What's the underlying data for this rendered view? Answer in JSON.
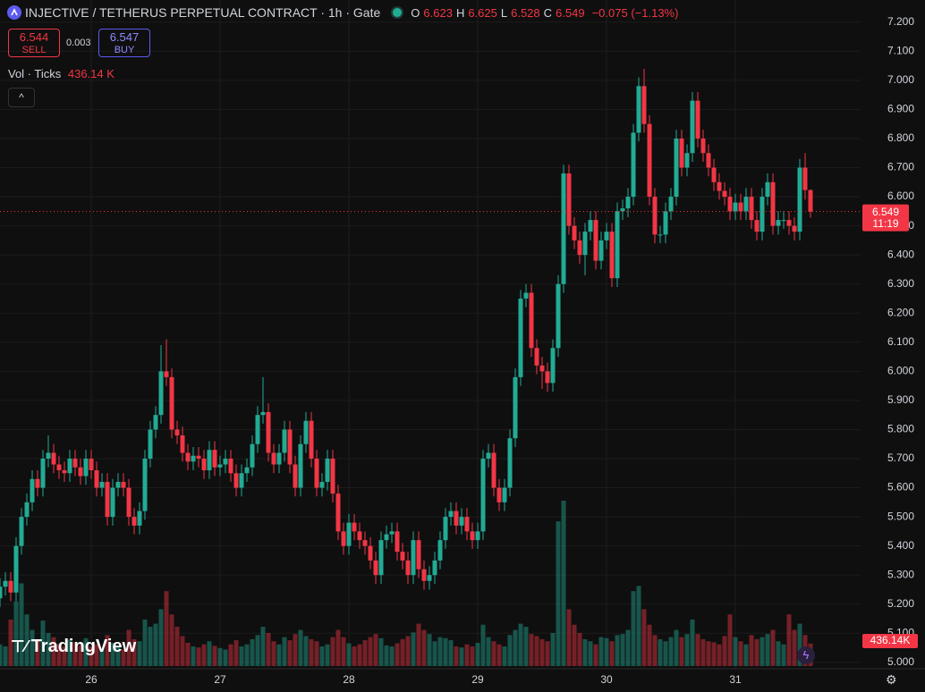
{
  "chart_data": {
    "type": "candlestick",
    "title": "INJECTIVE / TETHERUS PERPETUAL CONTRACT · 1h · Gate",
    "ohlc_labels": [
      "O",
      "H",
      "L",
      "C"
    ],
    "change": "−0.075 (−1.13%)",
    "sell": {
      "price": 6.544,
      "label": "SELL"
    },
    "spread": 0.003,
    "buy": {
      "price": 6.547,
      "label": "BUY"
    },
    "volume_title": "Vol · Ticks",
    "volume_readout": "436.14 K",
    "volume_tag": "436.14K",
    "countdown": "11:19",
    "logo": "TradingView",
    "up_color": "#22ab94",
    "down_color": "#f23645",
    "grid": true,
    "ylim": [
      4.978,
      7.276
    ],
    "yticks": [
      {
        "value": 5.0,
        "label": "5.000"
      },
      {
        "value": 5.1,
        "label": "5.100"
      },
      {
        "value": 5.2,
        "label": "5.200"
      },
      {
        "value": 5.3,
        "label": "5.300"
      },
      {
        "value": 5.4,
        "label": "5.400"
      },
      {
        "value": 5.5,
        "label": "5.500"
      },
      {
        "value": 5.6,
        "label": "5.600"
      },
      {
        "value": 5.7,
        "label": "5.700"
      },
      {
        "value": 5.8,
        "label": "5.800"
      },
      {
        "value": 5.9,
        "label": "5.900"
      },
      {
        "value": 6.0,
        "label": "6.000"
      },
      {
        "value": 6.1,
        "label": "6.100"
      },
      {
        "value": 6.2,
        "label": "6.200"
      },
      {
        "value": 6.3,
        "label": "6.300"
      },
      {
        "value": 6.4,
        "label": "6.400"
      },
      {
        "value": 6.5,
        "label": "6.500"
      },
      {
        "value": 6.6,
        "label": "6.600"
      },
      {
        "value": 6.7,
        "label": "6.700"
      },
      {
        "value": 6.8,
        "label": "6.800"
      },
      {
        "value": 6.9,
        "label": "6.900"
      },
      {
        "value": 7.0,
        "label": "7.000"
      },
      {
        "value": 7.1,
        "label": "7.100"
      },
      {
        "value": 7.2,
        "label": "7.200"
      }
    ],
    "categories": [
      null,
      null,
      null,
      null,
      null,
      null,
      null,
      null,
      null,
      null,
      null,
      null,
      null,
      null,
      null,
      null,
      null,
      "26",
      null,
      null,
      null,
      null,
      null,
      null,
      null,
      null,
      null,
      null,
      null,
      null,
      null,
      null,
      null,
      null,
      null,
      null,
      null,
      null,
      null,
      null,
      null,
      "27",
      null,
      null,
      null,
      null,
      null,
      null,
      null,
      null,
      null,
      null,
      null,
      null,
      null,
      null,
      null,
      null,
      null,
      null,
      null,
      null,
      null,
      null,
      null,
      "28",
      null,
      null,
      null,
      null,
      null,
      null,
      null,
      null,
      null,
      null,
      null,
      null,
      null,
      null,
      null,
      null,
      null,
      null,
      null,
      null,
      null,
      null,
      null,
      "29",
      null,
      null,
      null,
      null,
      null,
      null,
      null,
      null,
      null,
      null,
      null,
      null,
      null,
      null,
      null,
      null,
      null,
      null,
      null,
      null,
      null,
      null,
      null,
      "30",
      null,
      null,
      null,
      null,
      null,
      null,
      null,
      null,
      null,
      null,
      null,
      null,
      null,
      null,
      null,
      null,
      null,
      null,
      null,
      null,
      null,
      null,
      null,
      "31",
      null,
      null,
      null,
      null,
      null,
      null,
      null,
      null,
      null,
      null,
      null,
      null,
      null,
      null
    ],
    "open": [
      5.22,
      5.26,
      5.28,
      5.24,
      5.4,
      5.5,
      5.55,
      5.63,
      5.6,
      5.7,
      5.72,
      5.68,
      5.66,
      5.65,
      5.7,
      5.67,
      5.64,
      5.7,
      5.66,
      5.6,
      5.62,
      5.5,
      5.6,
      5.62,
      5.6,
      5.5,
      5.47,
      5.52,
      5.7,
      5.8,
      5.85,
      6.0,
      5.98,
      5.8,
      5.78,
      5.72,
      5.69,
      5.71,
      5.7,
      5.66,
      5.73,
      5.67,
      5.68,
      5.7,
      5.65,
      5.6,
      5.65,
      5.67,
      5.75,
      5.85,
      5.86,
      5.72,
      5.68,
      5.72,
      5.8,
      5.68,
      5.6,
      5.75,
      5.83,
      5.7,
      5.6,
      5.62,
      5.7,
      5.58,
      5.45,
      5.4,
      5.48,
      5.45,
      5.42,
      5.4,
      5.35,
      5.3,
      5.42,
      5.44,
      5.45,
      5.38,
      5.35,
      5.3,
      5.42,
      5.32,
      5.28,
      5.3,
      5.35,
      5.42,
      5.5,
      5.52,
      5.47,
      5.5,
      5.45,
      5.42,
      5.45,
      5.7,
      5.72,
      5.6,
      5.55,
      5.6,
      5.77,
      5.98,
      6.25,
      6.27,
      6.08,
      6.02,
      6.0,
      5.96,
      6.08,
      6.3,
      6.68,
      6.5,
      6.45,
      6.4,
      6.48,
      6.52,
      6.38,
      6.45,
      6.48,
      6.32,
      6.55,
      6.56,
      6.6,
      6.82,
      6.98,
      6.85,
      6.6,
      6.47,
      6.47,
      6.55,
      6.6,
      6.8,
      6.7,
      6.75,
      6.93,
      6.8,
      6.75,
      6.7,
      6.65,
      6.62,
      6.6,
      6.55,
      6.58,
      6.55,
      6.6,
      6.52,
      6.48,
      6.6,
      6.65,
      6.5,
      6.52,
      6.52,
      6.5,
      6.48,
      6.7,
      6.623
    ],
    "high": [
      5.29,
      5.31,
      5.31,
      5.43,
      5.53,
      5.58,
      5.66,
      5.66,
      5.73,
      5.78,
      5.75,
      5.71,
      5.69,
      5.73,
      5.73,
      5.7,
      5.73,
      5.73,
      5.69,
      5.65,
      5.65,
      5.63,
      5.65,
      5.65,
      5.63,
      5.53,
      5.55,
      5.73,
      5.83,
      5.88,
      6.09,
      6.11,
      6.01,
      5.83,
      5.81,
      5.75,
      5.74,
      5.74,
      5.73,
      5.76,
      5.76,
      5.71,
      5.73,
      5.73,
      5.68,
      5.68,
      5.7,
      5.78,
      5.88,
      5.98,
      5.89,
      5.75,
      5.75,
      5.83,
      5.83,
      5.71,
      5.78,
      5.86,
      5.86,
      5.73,
      5.65,
      5.73,
      5.73,
      5.61,
      5.48,
      5.51,
      5.51,
      5.48,
      5.45,
      5.43,
      5.38,
      5.45,
      5.47,
      5.48,
      5.48,
      5.41,
      5.38,
      5.45,
      5.45,
      5.35,
      5.33,
      5.38,
      5.45,
      5.53,
      5.55,
      5.55,
      5.53,
      5.53,
      5.48,
      5.48,
      5.73,
      5.75,
      5.75,
      5.63,
      5.63,
      5.8,
      6.01,
      6.28,
      6.3,
      6.3,
      6.11,
      6.05,
      6.03,
      6.11,
      6.33,
      6.71,
      6.71,
      6.53,
      6.48,
      6.51,
      6.55,
      6.55,
      6.48,
      6.51,
      6.51,
      6.58,
      6.59,
      6.63,
      6.85,
      7.01,
      7.04,
      6.88,
      6.63,
      6.5,
      6.58,
      6.63,
      6.83,
      6.83,
      6.78,
      6.96,
      6.96,
      6.83,
      6.78,
      6.73,
      6.68,
      6.65,
      6.63,
      6.61,
      6.61,
      6.63,
      6.63,
      6.55,
      6.63,
      6.68,
      6.68,
      6.55,
      6.55,
      6.55,
      6.53,
      6.73,
      6.75,
      6.625
    ],
    "low": [
      5.19,
      5.23,
      5.21,
      5.21,
      5.37,
      5.47,
      5.52,
      5.57,
      5.57,
      5.67,
      5.65,
      5.63,
      5.62,
      5.62,
      5.64,
      5.61,
      5.61,
      5.63,
      5.57,
      5.57,
      5.47,
      5.47,
      5.57,
      5.57,
      5.47,
      5.44,
      5.44,
      5.49,
      5.67,
      5.77,
      5.82,
      5.95,
      5.77,
      5.75,
      5.69,
      5.66,
      5.66,
      5.67,
      5.63,
      5.63,
      5.64,
      5.64,
      5.65,
      5.62,
      5.57,
      5.57,
      5.62,
      5.64,
      5.72,
      5.82,
      5.69,
      5.65,
      5.65,
      5.69,
      5.65,
      5.57,
      5.57,
      5.72,
      5.67,
      5.57,
      5.57,
      5.59,
      5.55,
      5.42,
      5.37,
      5.37,
      5.42,
      5.39,
      5.37,
      5.32,
      5.27,
      5.27,
      5.39,
      5.41,
      5.35,
      5.32,
      5.27,
      5.27,
      5.29,
      5.25,
      5.25,
      5.27,
      5.32,
      5.39,
      5.47,
      5.44,
      5.44,
      5.42,
      5.39,
      5.39,
      5.42,
      5.67,
      5.57,
      5.52,
      5.52,
      5.57,
      5.74,
      5.95,
      6.22,
      6.05,
      5.99,
      5.94,
      5.93,
      5.93,
      6.05,
      6.27,
      6.47,
      6.42,
      6.37,
      6.33,
      6.45,
      6.35,
      6.35,
      6.42,
      6.29,
      6.29,
      6.52,
      6.53,
      6.57,
      6.79,
      6.82,
      6.57,
      6.44,
      6.44,
      6.44,
      6.52,
      6.57,
      6.67,
      6.67,
      6.72,
      6.77,
      6.72,
      6.67,
      6.62,
      6.59,
      6.57,
      6.52,
      6.52,
      6.52,
      6.52,
      6.49,
      6.45,
      6.45,
      6.57,
      6.47,
      6.47,
      6.49,
      6.47,
      6.45,
      6.45,
      6.59,
      6.528
    ],
    "close": [
      5.26,
      5.28,
      5.24,
      5.4,
      5.5,
      5.55,
      5.63,
      5.6,
      5.7,
      5.72,
      5.68,
      5.66,
      5.65,
      5.7,
      5.67,
      5.64,
      5.7,
      5.66,
      5.6,
      5.62,
      5.5,
      5.6,
      5.62,
      5.6,
      5.5,
      5.47,
      5.52,
      5.7,
      5.8,
      5.85,
      6.0,
      5.98,
      5.8,
      5.78,
      5.72,
      5.69,
      5.71,
      5.7,
      5.66,
      5.73,
      5.67,
      5.68,
      5.7,
      5.65,
      5.6,
      5.65,
      5.67,
      5.75,
      5.85,
      5.86,
      5.72,
      5.68,
      5.72,
      5.8,
      5.68,
      5.6,
      5.75,
      5.83,
      5.7,
      5.6,
      5.62,
      5.7,
      5.58,
      5.45,
      5.4,
      5.48,
      5.45,
      5.42,
      5.4,
      5.35,
      5.3,
      5.42,
      5.44,
      5.45,
      5.38,
      5.35,
      5.3,
      5.42,
      5.32,
      5.28,
      5.3,
      5.35,
      5.42,
      5.5,
      5.52,
      5.47,
      5.5,
      5.45,
      5.42,
      5.45,
      5.7,
      5.72,
      5.6,
      5.55,
      5.6,
      5.77,
      5.98,
      6.25,
      6.27,
      6.08,
      6.02,
      6.0,
      5.96,
      6.08,
      6.3,
      6.68,
      6.5,
      6.45,
      6.4,
      6.48,
      6.52,
      6.38,
      6.45,
      6.48,
      6.32,
      6.55,
      6.56,
      6.6,
      6.82,
      6.98,
      6.85,
      6.6,
      6.47,
      6.47,
      6.55,
      6.6,
      6.8,
      6.7,
      6.75,
      6.93,
      6.8,
      6.75,
      6.7,
      6.65,
      6.62,
      6.6,
      6.55,
      6.58,
      6.55,
      6.6,
      6.52,
      6.48,
      6.6,
      6.65,
      6.5,
      6.52,
      6.52,
      6.5,
      6.48,
      6.7,
      6.623,
      6.549
    ],
    "volume": [
      420,
      380,
      900,
      1250,
      1600,
      1000,
      700,
      520,
      880,
      640,
      560,
      430,
      380,
      510,
      460,
      400,
      540,
      380,
      420,
      350,
      600,
      450,
      380,
      320,
      700,
      520,
      480,
      900,
      760,
      820,
      1100,
      1450,
      1000,
      760,
      580,
      450,
      380,
      360,
      420,
      480,
      390,
      350,
      320,
      420,
      500,
      380,
      420,
      520,
      600,
      760,
      640,
      480,
      420,
      560,
      500,
      620,
      700,
      580,
      520,
      480,
      380,
      420,
      560,
      700,
      560,
      440,
      380,
      420,
      500,
      560,
      620,
      540,
      400,
      380,
      440,
      520,
      580,
      650,
      820,
      700,
      620,
      480,
      560,
      540,
      500,
      380,
      360,
      420,
      380,
      450,
      800,
      560,
      480,
      420,
      380,
      600,
      700,
      820,
      760,
      620,
      580,
      520,
      480,
      640,
      2800,
      3200,
      1100,
      800,
      640,
      520,
      480,
      420,
      560,
      540,
      480,
      600,
      620,
      700,
      1450,
      1550,
      1100,
      800,
      600,
      520,
      480,
      560,
      700,
      560,
      620,
      900,
      620,
      520,
      480,
      460,
      420,
      580,
      1000,
      560,
      480,
      420,
      600,
      520,
      560,
      620,
      700,
      480,
      420,
      1000,
      700,
      820,
      600,
      436.14
    ]
  }
}
